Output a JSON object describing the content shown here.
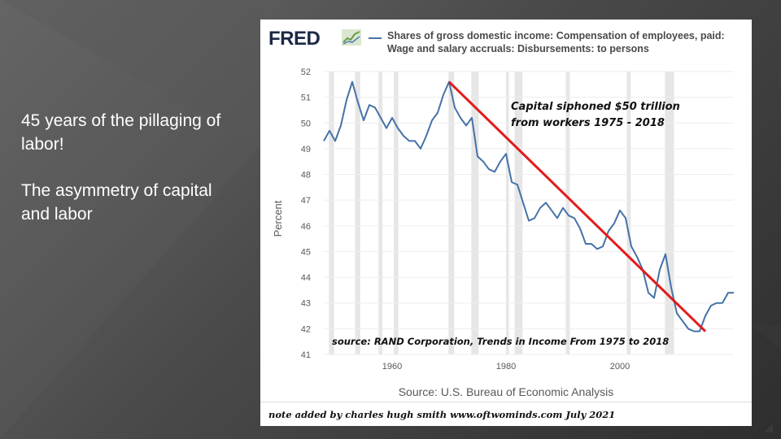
{
  "slide": {
    "line1": "45 years of the pillaging of labor!",
    "line2": "The asymmetry of capital and labor"
  },
  "fred": {
    "logo_text": "FRED",
    "legend_label": "Shares of gross domestic income: Compensation of employees, paid: Wage and salary accruals: Disbursements: to persons",
    "source": "Source: U.S. Bureau of Economic Analysis",
    "note": "note added by charles hugh smith   www.oftwominds.com   July 2021",
    "series_color": "#4572a7",
    "annotation_color": "#e31b1b"
  },
  "chart_data": {
    "type": "line",
    "ylabel": "Percent",
    "xlabel": "",
    "ylim": [
      41,
      52
    ],
    "xlim": [
      1948,
      2020
    ],
    "yticks": [
      41,
      42,
      43,
      44,
      45,
      46,
      47,
      48,
      49,
      50,
      51,
      52
    ],
    "xticks": [
      1960,
      1980,
      2000
    ],
    "recessions": [
      [
        1948.9,
        1949.8
      ],
      [
        1953.5,
        1954.4
      ],
      [
        1957.6,
        1958.3
      ],
      [
        1960.3,
        1961.1
      ],
      [
        1969.9,
        1970.9
      ],
      [
        1973.9,
        1975.2
      ],
      [
        1980.0,
        1980.5
      ],
      [
        1981.5,
        1982.9
      ],
      [
        1990.5,
        1991.2
      ],
      [
        2001.2,
        2001.9
      ],
      [
        2007.9,
        2009.5
      ]
    ],
    "series": [
      {
        "x": [
          1948,
          1949,
          1950,
          1951,
          1952,
          1953,
          1954,
          1955,
          1956,
          1957,
          1958,
          1959,
          1960,
          1961,
          1962,
          1963,
          1964,
          1965,
          1966,
          1967,
          1968,
          1969,
          1970,
          1971,
          1972,
          1973,
          1974,
          1975,
          1976,
          1977,
          1978,
          1979,
          1980,
          1981,
          1982,
          1983,
          1984,
          1985,
          1986,
          1987,
          1988,
          1989,
          1990,
          1991,
          1992,
          1993,
          1994,
          1995,
          1996,
          1997,
          1998,
          1999,
          2000,
          2001,
          2002,
          2003,
          2004,
          2005,
          2006,
          2007,
          2008,
          2009,
          2010,
          2011,
          2012,
          2013,
          2014,
          2015,
          2016,
          2017,
          2018,
          2019,
          2020
        ],
        "values": [
          49.3,
          49.7,
          49.3,
          49.9,
          50.9,
          51.6,
          50.8,
          50.1,
          50.7,
          50.6,
          50.2,
          49.8,
          50.2,
          49.8,
          49.5,
          49.3,
          49.3,
          49.0,
          49.5,
          50.1,
          50.4,
          51.1,
          51.6,
          50.6,
          50.2,
          49.9,
          50.2,
          48.7,
          48.5,
          48.2,
          48.1,
          48.5,
          48.8,
          47.7,
          47.6,
          46.9,
          46.2,
          46.3,
          46.7,
          46.9,
          46.6,
          46.3,
          46.7,
          46.4,
          46.3,
          45.9,
          45.3,
          45.3,
          45.1,
          45.2,
          45.8,
          46.1,
          46.6,
          46.3,
          45.2,
          44.8,
          44.3,
          43.4,
          43.2,
          44.3,
          44.9,
          43.6,
          42.6,
          42.3,
          42.0,
          41.9,
          41.9,
          42.5,
          42.9,
          43.0,
          43.0,
          43.4,
          43.4
        ]
      }
    ],
    "trendline": {
      "x": [
        1970,
        2015
      ],
      "values": [
        51.6,
        41.9
      ]
    },
    "annotations": [
      "Capital siphoned $50 trillion",
      "from workers 1975 - 2018",
      "source: RAND Corporation, Trends in Income From 1975 to 2018"
    ]
  }
}
